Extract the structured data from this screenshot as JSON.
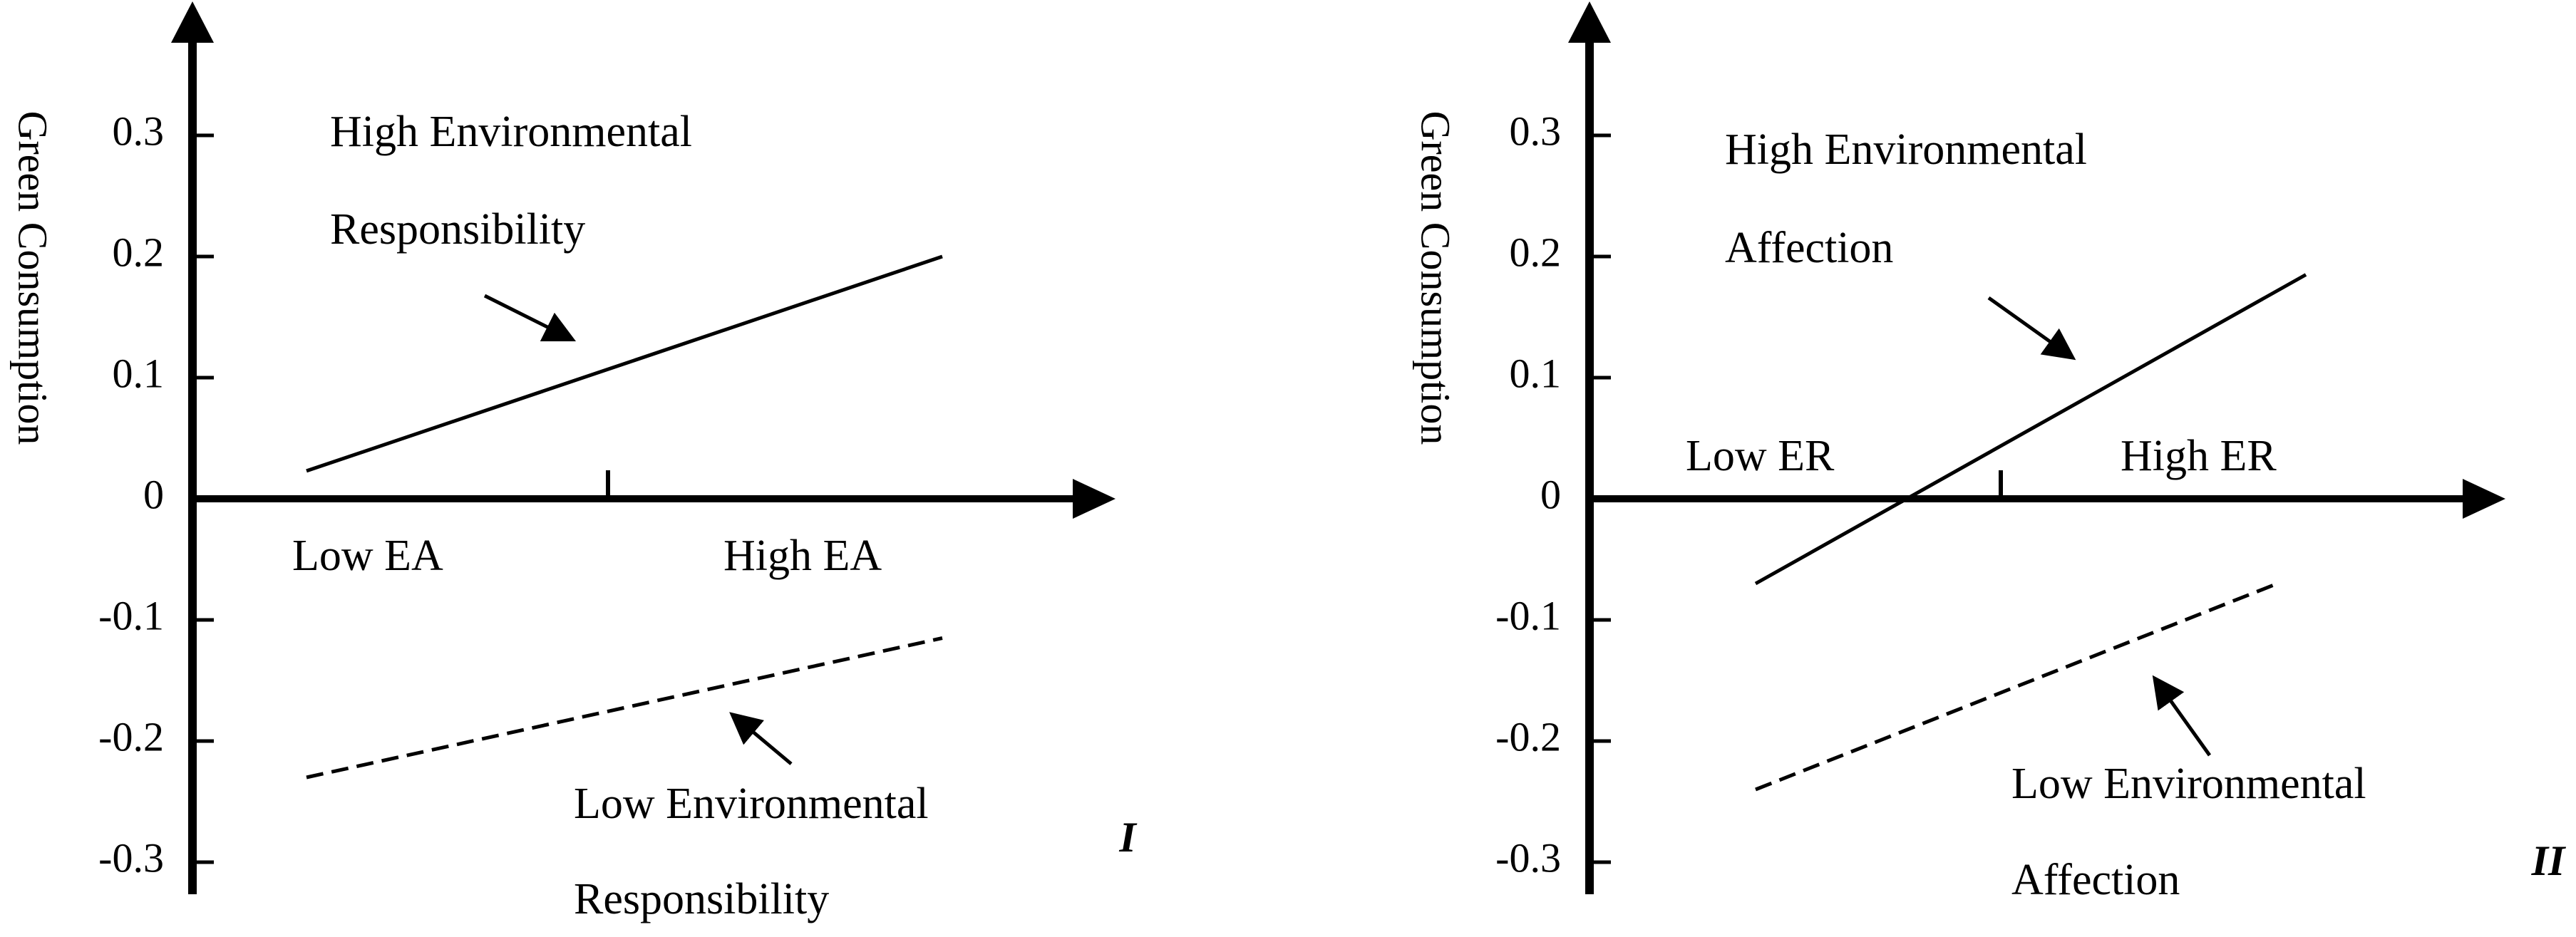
{
  "colors": {
    "axis": "#000000",
    "line": "#000000",
    "background": "#ffffff"
  },
  "chart_data": [
    {
      "type": "line",
      "panel_label": "I",
      "ylabel": "Green Consumption",
      "yticks": [
        "0.3",
        "0.2",
        "0.1",
        "0",
        "-0.1",
        "-0.2",
        "-0.3"
      ],
      "ylim": [
        -0.3,
        0.3
      ],
      "categories": [
        "Low EA",
        "High EA"
      ],
      "series": [
        {
          "name": "High Environmental Responsibility",
          "style": "solid",
          "values": [
            0.023,
            0.2
          ]
        },
        {
          "name": "Low Environmental Responsibility",
          "style": "dashed",
          "values": [
            -0.23,
            -0.115
          ]
        }
      ],
      "annotations": [
        {
          "lines": [
            "High Environmental",
            "Responsibility"
          ]
        },
        {
          "lines": [
            "Low Environmental",
            "Responsibility"
          ]
        }
      ]
    },
    {
      "type": "line",
      "panel_label": "II",
      "ylabel": "Green Consumption",
      "yticks": [
        "0.3",
        "0.2",
        "0.1",
        "0",
        "-0.1",
        "-0.2",
        "-0.3"
      ],
      "ylim": [
        -0.3,
        0.3
      ],
      "categories": [
        "Low ER",
        "High ER"
      ],
      "series": [
        {
          "name": "High Environmental Affection",
          "style": "solid",
          "values": [
            -0.07,
            0.185
          ]
        },
        {
          "name": "Low Environmental Affection",
          "style": "dashed",
          "values": [
            -0.24,
            -0.07
          ]
        }
      ],
      "annotations": [
        {
          "lines": [
            "High Environmental",
            "Affection"
          ]
        },
        {
          "lines": [
            "Low Environmental",
            "Affection"
          ]
        }
      ]
    }
  ]
}
